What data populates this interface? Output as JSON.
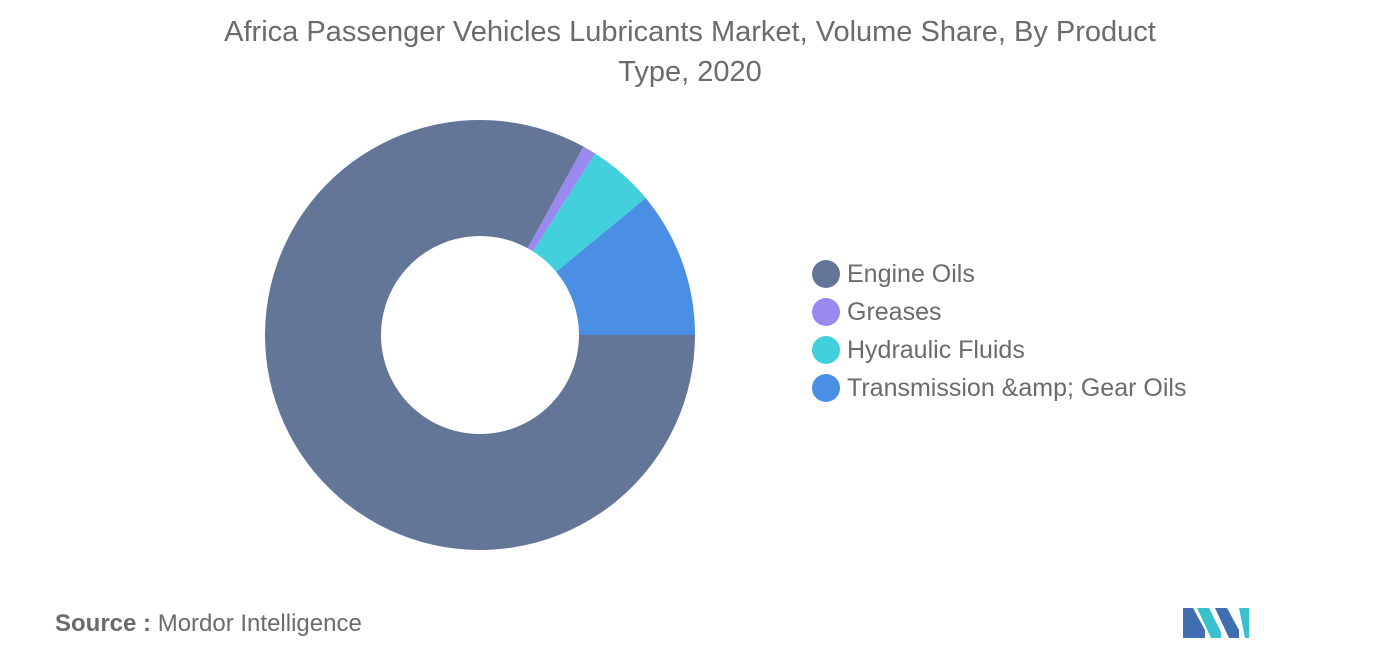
{
  "chart_data": {
    "type": "pie",
    "variant": "donut",
    "title": "Africa Passenger Vehicles Lubricants Market, Volume Share, By Product Type, 2020",
    "title_lines": [
      "Africa Passenger Vehicles Lubricants Market, Volume Share, By Product",
      "Type, 2020"
    ],
    "categories": [
      "Engine Oils",
      "Greases",
      "Hydraulic Fluids",
      "Transmission &amp; Gear Oils"
    ],
    "values": [
      83,
      1,
      5,
      11
    ],
    "colors": [
      "#647698",
      "#9a8af0",
      "#42d0dc",
      "#4a8fe3"
    ],
    "legend_position": "right"
  },
  "source": {
    "prefix": "Source :",
    "text": " Mordor Intelligence"
  },
  "logo": {
    "icon": "mordor-intelligence-logo",
    "colors": [
      "#3f6fb0",
      "#39c1cd"
    ]
  }
}
